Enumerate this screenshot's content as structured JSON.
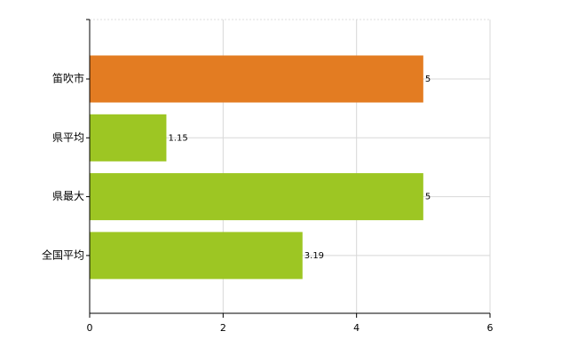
{
  "chart_data": {
    "type": "bar",
    "orientation": "horizontal",
    "categories": [
      "笛吹市",
      "県平均",
      "県最大",
      "全国平均"
    ],
    "values": [
      5,
      1.15,
      5,
      3.19
    ],
    "colors": [
      "#e37c22",
      "#9dc623",
      "#9dc623",
      "#9dc623"
    ],
    "xlim": [
      0,
      6
    ],
    "xticks": [
      0,
      2,
      4,
      6
    ],
    "grid": true
  }
}
